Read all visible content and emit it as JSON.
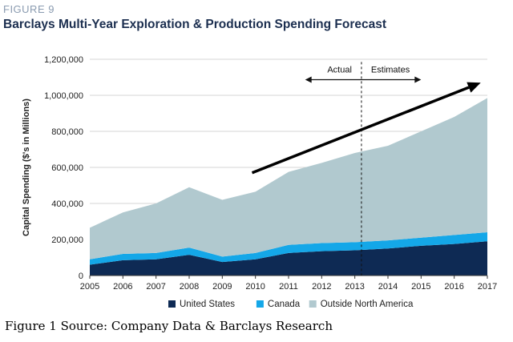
{
  "figure_label": "FIGURE 9",
  "title": "Barclays Multi-Year Exploration & Production Spending Forecast",
  "caption": "Figure 1 Source: Company Data & Barclays Research",
  "chart_data": {
    "type": "area",
    "stacked": true,
    "title": "Barclays Multi-Year Exploration & Production Spending Forecast",
    "xlabel": "",
    "ylabel": "Capital Spending ($'s in Millions)",
    "x": [
      2005,
      2006,
      2007,
      2008,
      2009,
      2010,
      2011,
      2012,
      2013,
      2014,
      2015,
      2016,
      2017
    ],
    "x_tick_labels": [
      "2005",
      "2006",
      "2007",
      "2008",
      "2009",
      "2010",
      "2011",
      "2012",
      "2013",
      "2014",
      "2015",
      "2016",
      "2017"
    ],
    "ylim": [
      0,
      1200000
    ],
    "y_ticks": [
      0,
      200000,
      400000,
      600000,
      800000,
      1000000,
      1200000
    ],
    "y_tick_labels": [
      "0",
      "200,000",
      "400,000",
      "600,000",
      "800,000",
      "1,000,000",
      "1,200,000"
    ],
    "grid": "horizontal",
    "legend_position": "bottom",
    "series": [
      {
        "name": "United States",
        "color": "#0e2a54",
        "values": [
          60000,
          85000,
          90000,
          115000,
          75000,
          90000,
          125000,
          135000,
          140000,
          150000,
          165000,
          175000,
          190000
        ]
      },
      {
        "name": "Canada",
        "color": "#14a7e8",
        "values": [
          30000,
          35000,
          35000,
          40000,
          30000,
          35000,
          45000,
          45000,
          45000,
          45000,
          45000,
          50000,
          50000
        ]
      },
      {
        "name": "Outside North America",
        "color": "#b1c9cf",
        "values": [
          175000,
          230000,
          275000,
          335000,
          315000,
          340000,
          405000,
          445000,
          495000,
          525000,
          590000,
          655000,
          745000
        ]
      }
    ],
    "annotations": {
      "actual_label": "Actual",
      "estimates_label": "Estimates",
      "divider_x": 2013.2,
      "range_arrow": {
        "from_x": 2011.5,
        "to_x": 2015.0,
        "y": 1100000
      },
      "trend_arrow": {
        "from": [
          2009.9,
          570000
        ],
        "to": [
          2016.8,
          1070000
        ]
      }
    }
  }
}
